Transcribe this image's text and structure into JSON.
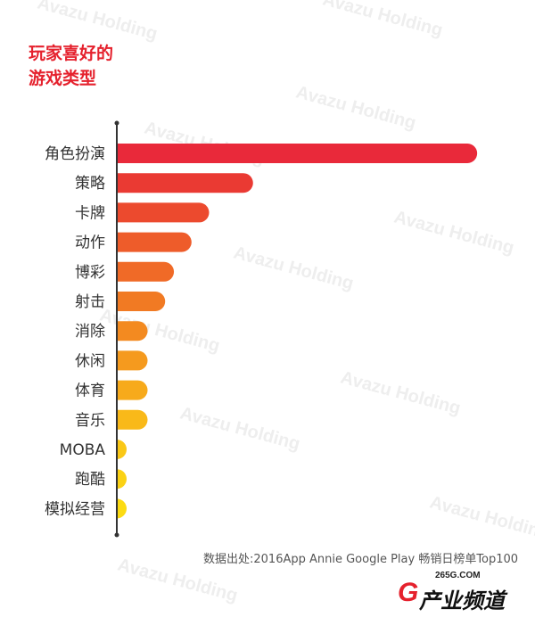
{
  "title_lines": [
    "玩家喜好的",
    "游戏类型"
  ],
  "source_note": "数据出处:2016App Annie Google Play 畅销日榜单Top100",
  "watermark_text": "Avazu Holding",
  "logo": {
    "site": "265G.COM",
    "mark": "G",
    "name": "产业频道"
  },
  "chart_data": {
    "type": "bar",
    "orientation": "horizontal",
    "title": "玩家喜好的游戏类型",
    "categories": [
      "角色扮演",
      "策略",
      "卡牌",
      "动作",
      "博彩",
      "射击",
      "消除",
      "休闲",
      "体育",
      "音乐",
      "MOBA",
      "跑酷",
      "模拟经营"
    ],
    "values": [
      41,
      15.5,
      10.5,
      8.5,
      6.5,
      5.5,
      3.5,
      3.5,
      3.5,
      3.5,
      1,
      1,
      1
    ],
    "value_axis_range": [
      0,
      42
    ],
    "colors": [
      "#e9293a",
      "#ea3a33",
      "#ec4a2e",
      "#ee5c2a",
      "#f06a27",
      "#f17a23",
      "#f38a20",
      "#f59a1e",
      "#f7aa1b",
      "#f9b919",
      "#fac817",
      "#fbd215",
      "#fcdb13"
    ],
    "grid": false,
    "legend": "none"
  }
}
